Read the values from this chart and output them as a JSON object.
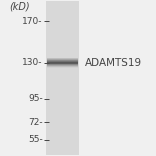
{
  "background_color": "#f0f0f0",
  "lane_color": "#d8d8d8",
  "band_color": "#4a4a4a",
  "text_color": "#444444",
  "title": "(kD)",
  "label": "ADAMTS19",
  "markers": [
    170,
    130,
    95,
    72,
    55
  ],
  "band_marker": 130,
  "fig_width": 1.56,
  "fig_height": 1.56,
  "dpi": 100,
  "label_fontsize": 7.5,
  "marker_fontsize": 6.5,
  "title_fontsize": 7
}
